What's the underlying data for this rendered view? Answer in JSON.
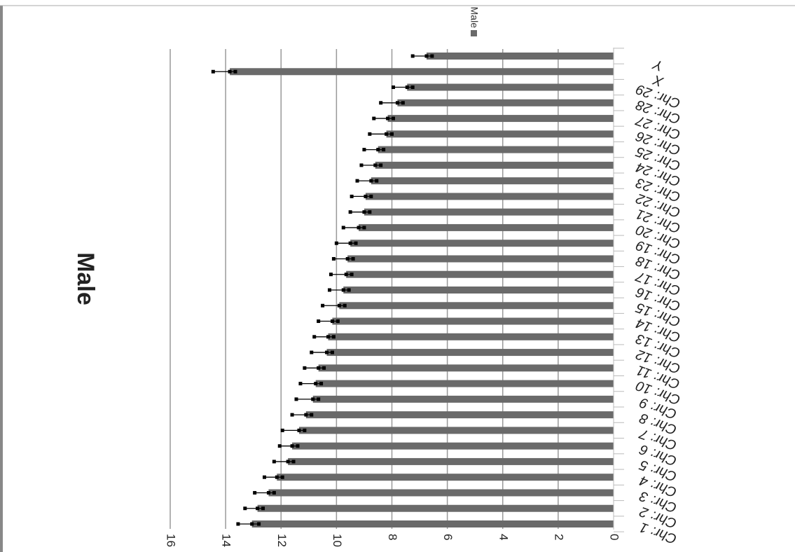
{
  "chart_data": {
    "type": "bar",
    "orientation": "horizontal",
    "title": "Male",
    "legend": {
      "entries": [
        "Male"
      ],
      "placement": "top"
    },
    "categories": [
      "Chr: 1",
      "Chr: 2",
      "Chr: 3",
      "Chr: 4",
      "Chr: 5",
      "Chr: 6",
      "Chr: 7",
      "Chr: 8",
      "Chr: 9",
      "Chr: 10",
      "Chr: 11",
      "Chr: 12",
      "Chr: 13",
      "Chr: 14",
      "Chr: 15",
      "Chr: 16",
      "Chr: 17",
      "Chr: 18",
      "Chr: 19",
      "Chr: 20",
      "Chr: 21",
      "Chr: 22",
      "Chr: 23",
      "Chr: 24",
      "Chr: 25",
      "Chr: 26",
      "Chr: 27",
      "Chr: 28",
      "Chr: 29",
      "X",
      "Y"
    ],
    "series": [
      {
        "name": "Male",
        "color": "#6a6a6a",
        "values": [
          13.05,
          12.85,
          12.45,
          12.15,
          11.75,
          11.6,
          11.35,
          11.1,
          10.85,
          10.75,
          10.65,
          10.35,
          10.3,
          10.15,
          9.9,
          9.75,
          9.65,
          9.6,
          9.5,
          9.2,
          9.0,
          8.95,
          8.75,
          8.6,
          8.5,
          8.2,
          8.15,
          7.8,
          7.45,
          13.85,
          6.75
        ],
        "error_plus": [
          0.5,
          0.45,
          0.5,
          0.45,
          0.5,
          0.45,
          0.6,
          0.5,
          0.6,
          0.55,
          0.5,
          0.55,
          0.5,
          0.5,
          0.6,
          0.5,
          0.55,
          0.5,
          0.5,
          0.55,
          0.5,
          0.5,
          0.5,
          0.5,
          0.5,
          0.6,
          0.5,
          0.6,
          0.5,
          0.6,
          0.5
        ],
        "error_minus": [
          0.25,
          0.2,
          0.2,
          0.2,
          0.2,
          0.2,
          0.2,
          0.2,
          0.2,
          0.2,
          0.2,
          0.2,
          0.2,
          0.2,
          0.2,
          0.2,
          0.2,
          0.2,
          0.2,
          0.2,
          0.2,
          0.2,
          0.2,
          0.2,
          0.2,
          0.2,
          0.2,
          0.2,
          0.2,
          0.2,
          0.2
        ]
      }
    ],
    "xlim": [
      0,
      16
    ],
    "ticks": [
      "0",
      "2",
      "4",
      "6",
      "8",
      "10",
      "12",
      "14",
      "16"
    ],
    "grid": true,
    "gridline_color": "#999999"
  }
}
